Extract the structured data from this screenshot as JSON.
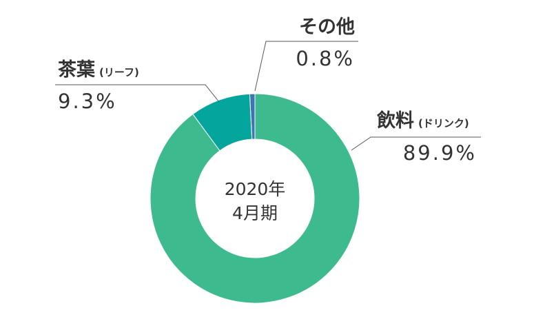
{
  "chart_data": {
    "type": "pie",
    "categories": [
      "飲料",
      "茶葉",
      "その他"
    ],
    "sub_labels": [
      "(ドリンク)",
      "(リーフ)",
      ""
    ],
    "values": [
      89.9,
      9.3,
      0.8
    ],
    "value_labels": [
      "89.9%",
      "9.3%",
      "0.8%"
    ],
    "colors": [
      "#3dbb8f",
      "#04a59c",
      "#3e74b4"
    ],
    "center_label": [
      "2020年",
      "4月期"
    ],
    "donut": true
  }
}
